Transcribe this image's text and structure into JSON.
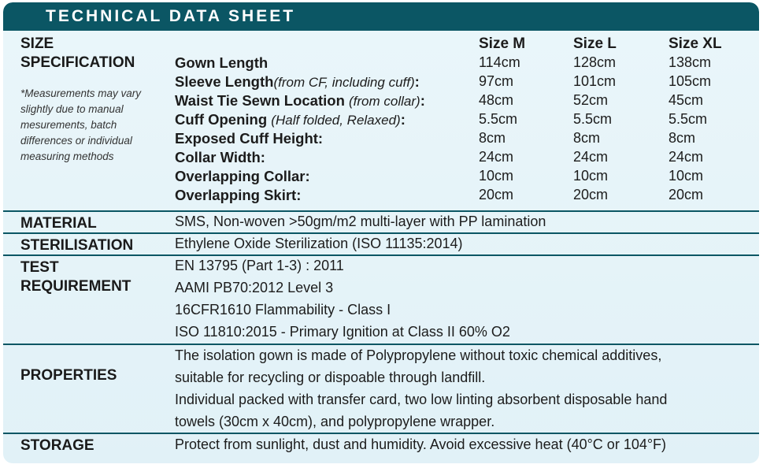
{
  "title": "TECHNICAL DATA SHEET",
  "size_spec": {
    "label_line1": "SIZE",
    "label_line2": "SPECIFICATION",
    "note": "*Measurements may vary slightly due to manual mesurements, batch differences or individual measuring methods",
    "sizes": [
      "Size M",
      "Size L",
      "Size XL"
    ],
    "rows": [
      {
        "name": "Gown Length",
        "qual": "",
        "suffix": "",
        "values": [
          "114cm",
          "128cm",
          "138cm"
        ]
      },
      {
        "name": "Sleeve Length",
        "qual": "(from CF, including cuff)",
        "suffix": ":",
        "values": [
          "97cm",
          "101cm",
          "105cm"
        ]
      },
      {
        "name": "Waist Tie Sewn Location ",
        "qual": "(from collar)",
        "suffix": ":",
        "values": [
          "48cm",
          "52cm",
          "45cm"
        ]
      },
      {
        "name": "Cuff Opening ",
        "qual": "(Half folded, Relaxed)",
        "suffix": ":",
        "values": [
          "5.5cm",
          "5.5cm",
          "5.5cm"
        ]
      },
      {
        "name": "Exposed Cuff Height:",
        "qual": "",
        "suffix": "",
        "values": [
          "8cm",
          "8cm",
          "8cm"
        ]
      },
      {
        "name": "Collar Width:",
        "qual": "",
        "suffix": "",
        "values": [
          "24cm",
          "24cm",
          "24cm"
        ]
      },
      {
        "name": "Overlapping Collar:",
        "qual": "",
        "suffix": "",
        "values": [
          "10cm",
          "10cm",
          "10cm"
        ]
      },
      {
        "name": "Overlapping Skirt:",
        "qual": "",
        "suffix": "",
        "values": [
          "20cm",
          "20cm",
          "20cm"
        ]
      }
    ]
  },
  "material": {
    "label": "MATERIAL",
    "text": "SMS, Non-woven >50gm/m2 multi-layer with PP lamination"
  },
  "sterilisation": {
    "label": "STERILISATION",
    "text": "Ethylene Oxide Sterilization (ISO 11135:2014)"
  },
  "test": {
    "label_line1": "TEST",
    "label_line2": "REQUIREMENT",
    "lines": [
      "EN 13795 (Part 1-3) : 2011",
      "AAMI PB70:2012 Level 3",
      "16CFR1610 Flammability - Class I",
      "ISO 11810:2015 - Primary Ignition at Class II 60% O2"
    ]
  },
  "properties": {
    "label": "PROPERTIES",
    "lines": [
      "The isolation gown is made of Polypropylene without toxic chemical additives,",
      "suitable for recycling or dispoable through landfill.",
      "Individual packed with transfer card, two low linting absorbent disposable hand",
      "towels (30cm x 40cm), and polypropylene wrapper."
    ]
  },
  "storage": {
    "label": "STORAGE",
    "text": "Protect from sunlight, dust and humidity. Avoid excessive heat (40°C or 104°F)"
  },
  "colors": {
    "header": "#0b5664",
    "panel": "#e4f3f8"
  }
}
